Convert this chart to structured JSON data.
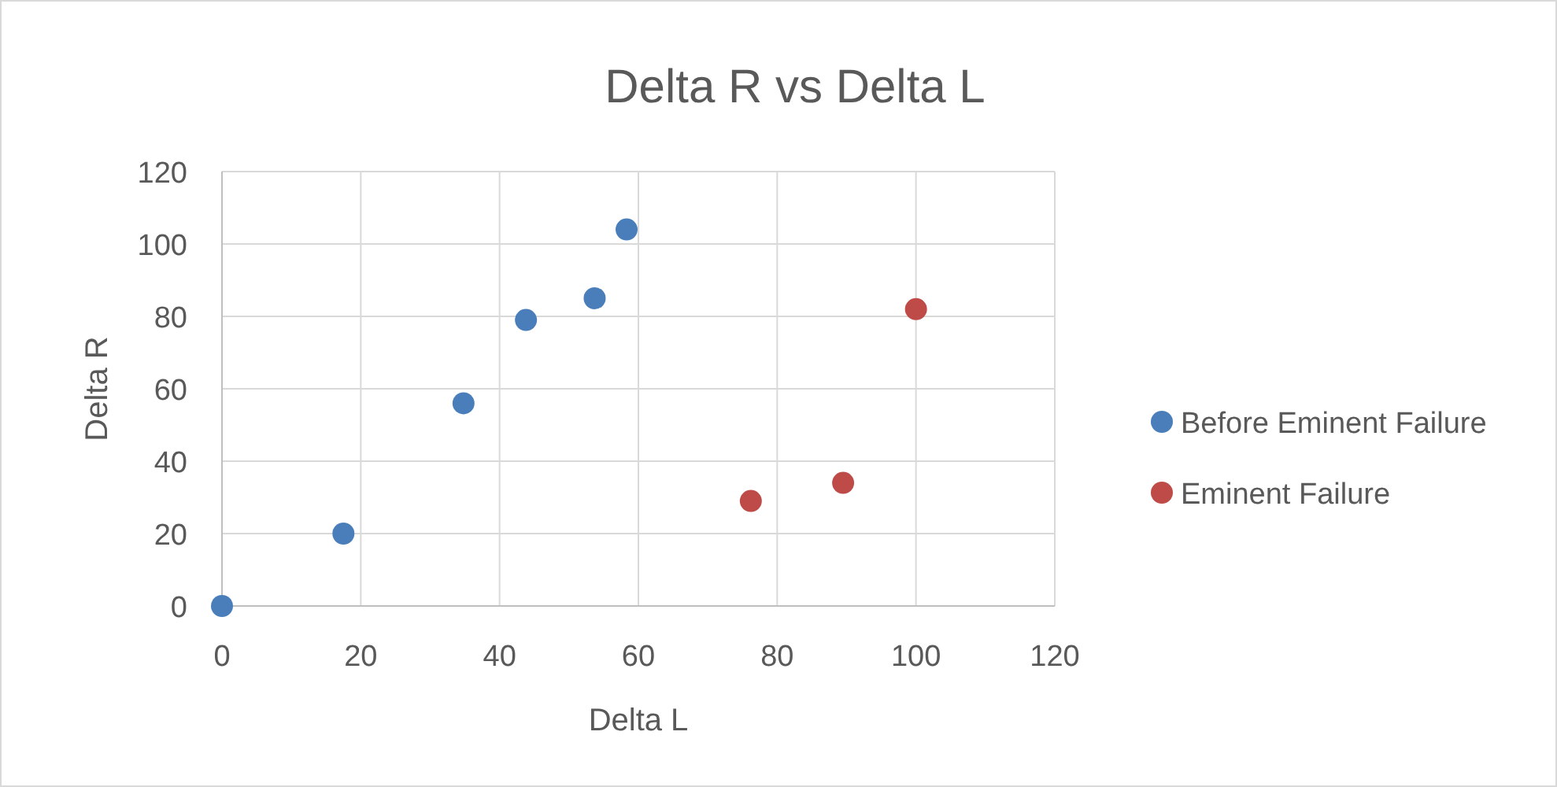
{
  "chart_data": {
    "type": "scatter",
    "title": "Delta R vs Delta L",
    "xlabel": "Delta L",
    "ylabel": "Delta R",
    "xlim": [
      0,
      120
    ],
    "xticks": [
      0,
      20,
      40,
      60,
      80,
      100,
      120
    ],
    "ylim": [
      0,
      120
    ],
    "yticks": [
      0,
      20,
      40,
      60,
      80,
      100,
      120
    ],
    "grid": true,
    "legend": "right",
    "marker": "circle",
    "series": [
      {
        "name": "Before Eminent Failure",
        "color": "#4a7ebb",
        "x": [
          0,
          17.5,
          34.8,
          43.8,
          53.7,
          58.3
        ],
        "values": [
          0,
          20,
          56,
          79,
          85,
          104
        ]
      },
      {
        "name": "Eminent Failure",
        "color": "#be4b48",
        "x": [
          76.2,
          89.5,
          100
        ],
        "values": [
          29,
          34,
          82
        ]
      }
    ]
  }
}
